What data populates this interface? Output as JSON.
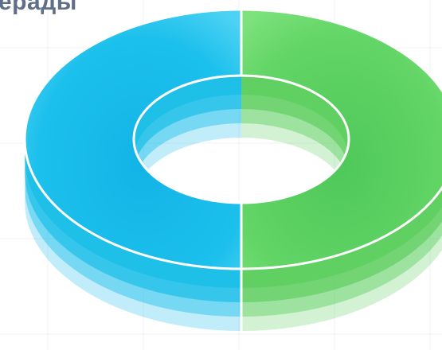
{
  "title_fragment": "ерады",
  "colors": {
    "background": "#ffffff",
    "grid": "#eef1f5",
    "title": "#5f6f87",
    "separator": "#ffffff"
  },
  "chart_data": {
    "type": "pie",
    "style": "3d-donut",
    "title": "ерады",
    "values": [
      50,
      50
    ],
    "colors": [
      "#1cbfe8",
      "#5fcf60"
    ],
    "legend": "none",
    "grid": true
  }
}
